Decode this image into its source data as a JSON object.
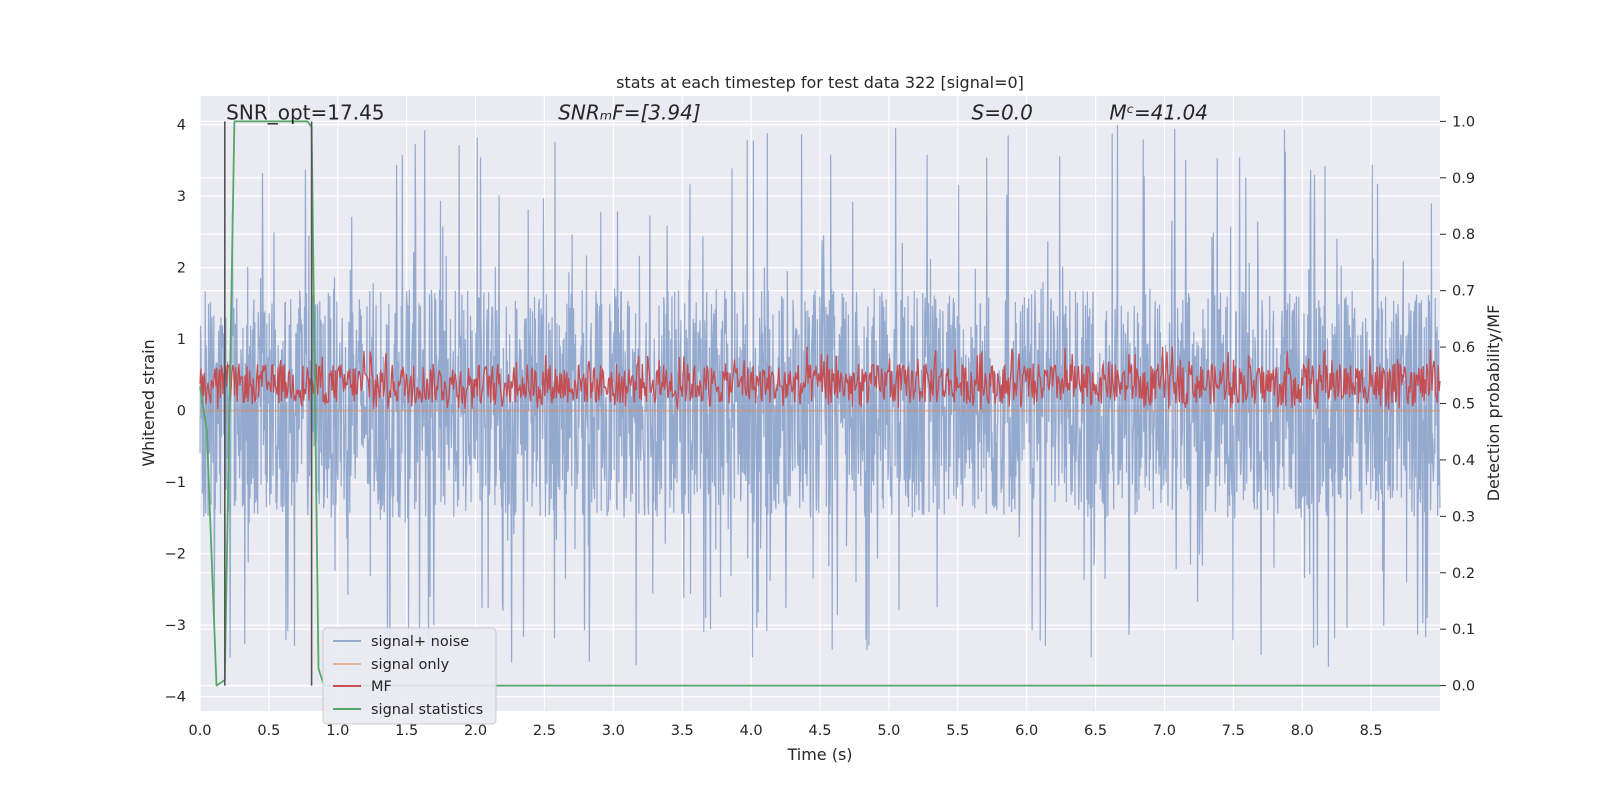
{
  "chart_data": {
    "type": "line",
    "title": "stats at each timestep for test data 322 [signal=0]",
    "xlabel": "Time (s)",
    "ylabel": "Whitened strain",
    "y2label": "Detection probability/MF",
    "xlim": [
      0.0,
      9.0
    ],
    "ylim": [
      -4.2,
      4.4
    ],
    "y2lim": [
      -0.045,
      1.045
    ],
    "xticks": [
      0.0,
      0.5,
      1.0,
      1.5,
      2.0,
      2.5,
      3.0,
      3.5,
      4.0,
      4.5,
      5.0,
      5.5,
      6.0,
      6.5,
      7.0,
      7.5,
      8.0,
      8.5
    ],
    "xtick_labels": [
      "0.0",
      "0.5",
      "1.0",
      "1.5",
      "2.0",
      "2.5",
      "3.0",
      "3.5",
      "4.0",
      "4.5",
      "5.0",
      "5.5",
      "6.0",
      "6.5",
      "7.0",
      "7.5",
      "8.0",
      "8.5"
    ],
    "yticks": [
      -4,
      -3,
      -2,
      -1,
      0,
      1,
      2,
      3,
      4
    ],
    "ytick_labels": [
      "−4",
      "−3",
      "−2",
      "−1",
      "0",
      "1",
      "2",
      "3",
      "4"
    ],
    "y2ticks": [
      0.0,
      0.1,
      0.2,
      0.3,
      0.4,
      0.5,
      0.6,
      0.7,
      0.8,
      0.9,
      1.0
    ],
    "y2tick_labels": [
      "0.0",
      "0.1",
      "0.2",
      "0.3",
      "0.4",
      "0.5",
      "0.6",
      "0.7",
      "0.8",
      "0.9",
      "1.0"
    ],
    "grid": true,
    "legend_position": "bottom-left",
    "annotations": [
      {
        "text": "SNR_opt=17.45",
        "x": 0.19,
        "y": 4.1
      },
      {
        "text": "SNRₘF=[3.94]",
        "x": 2.6,
        "y": 4.1
      },
      {
        "text": "S=0.0",
        "x": 5.6,
        "y": 4.1
      },
      {
        "text": "Mᶜ=41.04",
        "x": 6.6,
        "y": 4.1
      }
    ],
    "vlines": [
      {
        "x": 0.18,
        "y_range": [
          0.0,
          1.0
        ],
        "color": "#555555"
      },
      {
        "x": 0.81,
        "y_range": [
          0.0,
          1.0
        ],
        "color": "#555555"
      }
    ],
    "series": [
      {
        "name": "signal+ noise",
        "color": "#4c72b0",
        "axis": "left",
        "style": "noise",
        "typical_range": [
          -1.5,
          1.7
        ],
        "peak_range": [
          -3.6,
          4.0
        ]
      },
      {
        "name": "signal only",
        "color": "#dd8452",
        "axis": "left",
        "style": "flat",
        "value": 0.0
      },
      {
        "name": "MF",
        "color": "#c44e52",
        "axis": "right",
        "style": "noise",
        "typical_range": [
          0.5,
          0.57
        ],
        "peak_range": [
          0.49,
          0.6
        ]
      },
      {
        "name": "signal statistics",
        "color": "#55a868",
        "axis": "right",
        "x": [
          0.0,
          0.05,
          0.12,
          0.18,
          0.25,
          0.3,
          0.78,
          0.81,
          0.86,
          0.9,
          9.0
        ],
        "values": [
          0.53,
          0.45,
          0.0,
          0.01,
          1.0,
          1.0,
          1.0,
          0.99,
          0.03,
          0.0,
          0.0
        ]
      }
    ]
  }
}
